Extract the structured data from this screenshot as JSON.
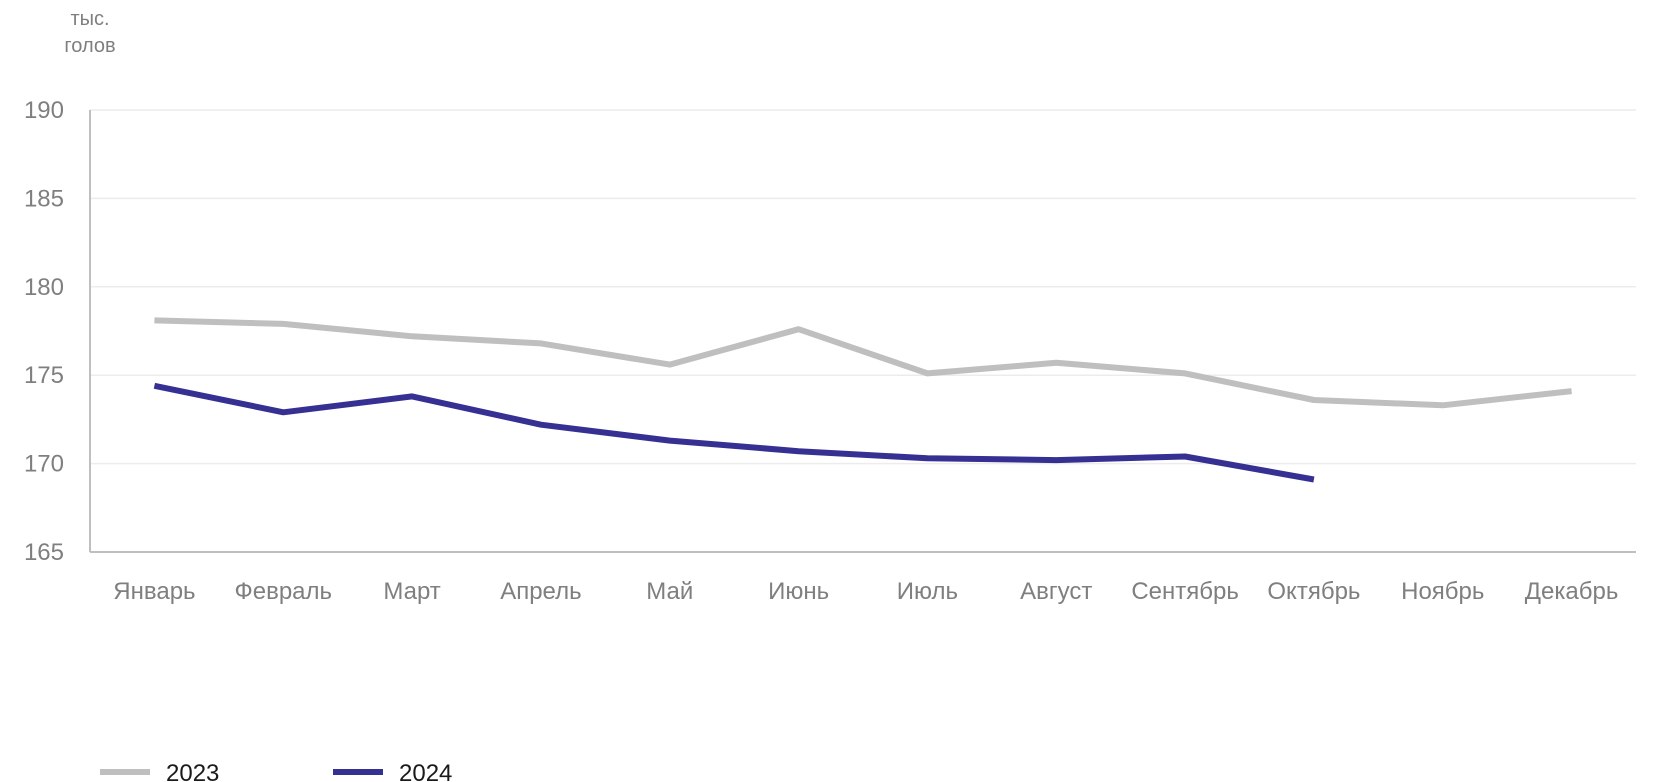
{
  "chart_data": {
    "type": "line",
    "ylabel_lines": [
      "тыс.",
      "голов"
    ],
    "categories": [
      "Январь",
      "Февраль",
      "Март",
      "Апрель",
      "Май",
      "Июнь",
      "Июль",
      "Август",
      "Сентябрь",
      "Октябрь",
      "Ноябрь",
      "Декабрь"
    ],
    "ylim": [
      165,
      190
    ],
    "yticks": [
      165,
      170,
      175,
      180,
      185,
      190
    ],
    "grid": true,
    "legend_position": "bottom-left",
    "series": [
      {
        "name": "2023",
        "color": "#bfbfbf",
        "values": [
          178.1,
          177.9,
          177.2,
          176.8,
          175.6,
          177.6,
          175.1,
          175.7,
          175.1,
          173.6,
          173.3,
          174.1
        ]
      },
      {
        "name": "2024",
        "color": "#353092",
        "values": [
          174.4,
          172.9,
          173.8,
          172.2,
          171.3,
          170.7,
          170.3,
          170.2,
          170.4,
          169.1,
          null,
          null
        ]
      }
    ]
  }
}
